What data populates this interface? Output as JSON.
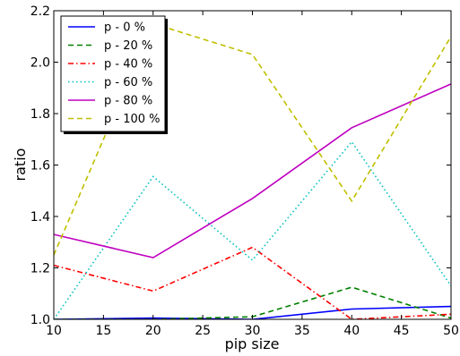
{
  "chart_data": {
    "type": "line",
    "title": "",
    "xlabel": "pip size",
    "ylabel": "ratio",
    "xlim": [
      10,
      50
    ],
    "ylim": [
      1.0,
      2.2
    ],
    "x": [
      10,
      20,
      30,
      40,
      50
    ],
    "xticks": [
      10,
      15,
      20,
      25,
      30,
      35,
      40,
      45,
      50
    ],
    "yticks": [
      1.0,
      1.2,
      1.4,
      1.6,
      1.8,
      2.0,
      2.2
    ],
    "ytick_labels": [
      "1.0",
      "1.2",
      "1.4",
      "1.6",
      "1.8",
      "2.0",
      "2.2"
    ],
    "grid": false,
    "legend_position": "top-left",
    "series": [
      {
        "name": "p - 0 %",
        "color": "#0000ff",
        "style": "solid",
        "values": [
          1.0,
          1.005,
          1.0,
          1.04,
          1.05
        ]
      },
      {
        "name": "p - 20 %",
        "color": "#008000",
        "style": "dashed",
        "values": [
          1.0,
          1.0,
          1.01,
          1.125,
          1.005
        ]
      },
      {
        "name": "p - 40 %",
        "color": "#ff0000",
        "style": "dashdot",
        "values": [
          1.21,
          1.11,
          1.28,
          1.0,
          1.02
        ]
      },
      {
        "name": "p - 60 %",
        "color": "#00bfbf",
        "style": "dotted",
        "values": [
          1.0,
          1.555,
          1.23,
          1.69,
          1.13
        ]
      },
      {
        "name": "p - 80 %",
        "color": "#bf00bf",
        "style": "solid",
        "values": [
          1.33,
          1.24,
          1.47,
          1.745,
          1.915
        ]
      },
      {
        "name": "p - 100 %",
        "color": "#bfbf00",
        "style": "dashed",
        "values": [
          1.25,
          2.15,
          2.03,
          1.46,
          2.1
        ]
      }
    ]
  }
}
